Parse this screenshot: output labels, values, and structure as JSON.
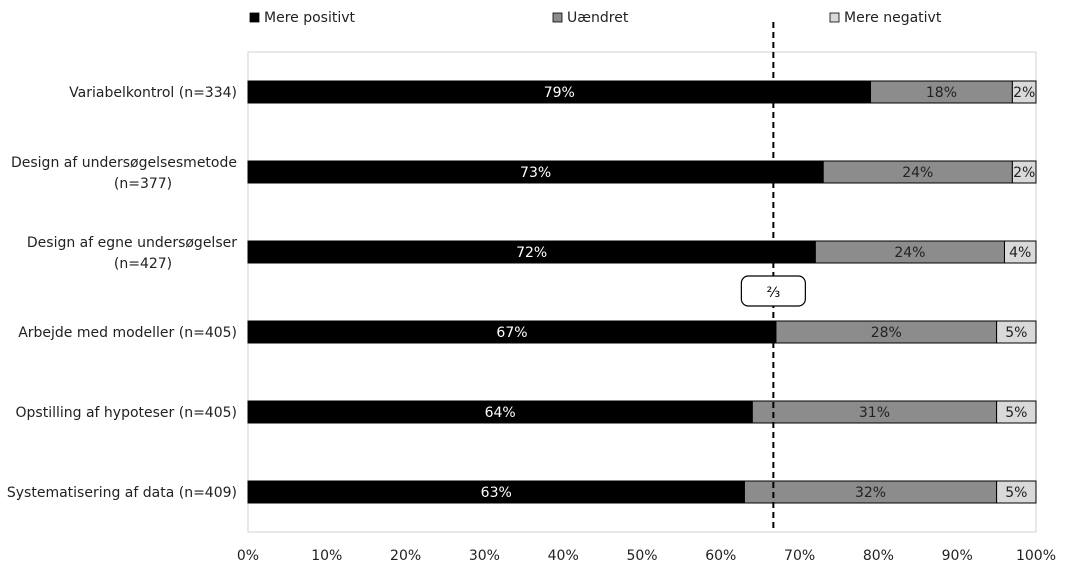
{
  "chart_data": {
    "type": "bar",
    "orientation": "horizontal",
    "stacked": true,
    "categories": [
      [
        "Variabelkontrol (n=334)"
      ],
      [
        "Design af undersøgelsesmetode",
        "(n=377)"
      ],
      [
        "Design af egne undersøgelser",
        "(n=427)"
      ],
      [
        "Arbejde med modeller (n=405)"
      ],
      [
        "Opstilling af hypoteser (n=405)"
      ],
      [
        "Systematisering af data (n=409)"
      ]
    ],
    "series": [
      {
        "name": "Mere positivt",
        "color": "#000000",
        "text_color": "#ffffff",
        "values": [
          79,
          73,
          72,
          67,
          64,
          63
        ],
        "labels": [
          "79%",
          "73%",
          "72%",
          "67%",
          "64%",
          "63%"
        ]
      },
      {
        "name": "Uændret",
        "color": "#8c8c8c",
        "text_color": "#222222",
        "values": [
          18,
          24,
          24,
          28,
          31,
          32
        ],
        "labels": [
          "18%",
          "24%",
          "24%",
          "28%",
          "31%",
          "32%"
        ]
      },
      {
        "name": "Mere negativt",
        "color": "#d9d9d9",
        "text_color": "#222222",
        "values": [
          2,
          2,
          4,
          5,
          5,
          5
        ],
        "labels": [
          "2%",
          "2%",
          "4%",
          "5%",
          "5%",
          "5%"
        ]
      }
    ],
    "xlim": [
      0,
      100
    ],
    "xticks": [
      "0%",
      "10%",
      "20%",
      "30%",
      "40%",
      "50%",
      "60%",
      "70%",
      "80%",
      "90%",
      "100%"
    ],
    "reference_line": {
      "value": 66.67,
      "style": "dashed",
      "label": "⅔"
    },
    "legend_position": "top",
    "grid": false
  }
}
